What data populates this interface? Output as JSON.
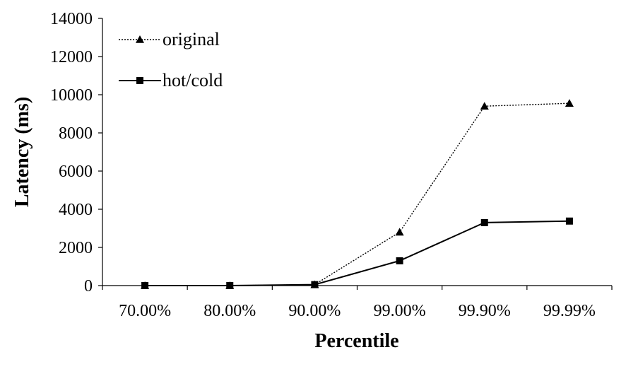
{
  "chart_data": {
    "type": "line",
    "categories": [
      "70.00%",
      "80.00%",
      "90.00%",
      "99.00%",
      "99.90%",
      "99.99%"
    ],
    "series": [
      {
        "name": "original",
        "values": [
          0,
          0,
          50,
          2800,
          9400,
          9550
        ],
        "style": "dotted",
        "marker": "triangle",
        "color": "#000000"
      },
      {
        "name": "hot/cold",
        "values": [
          0,
          0,
          50,
          1300,
          3300,
          3380
        ],
        "style": "solid",
        "marker": "square",
        "color": "#000000"
      }
    ],
    "title": "",
    "xlabel": "Percentile",
    "ylabel": "Latency (ms)",
    "ylim": [
      0,
      14000
    ],
    "yticks": [
      0,
      2000,
      4000,
      6000,
      8000,
      10000,
      12000,
      14000
    ],
    "grid": false,
    "legend_position": "top-left"
  }
}
